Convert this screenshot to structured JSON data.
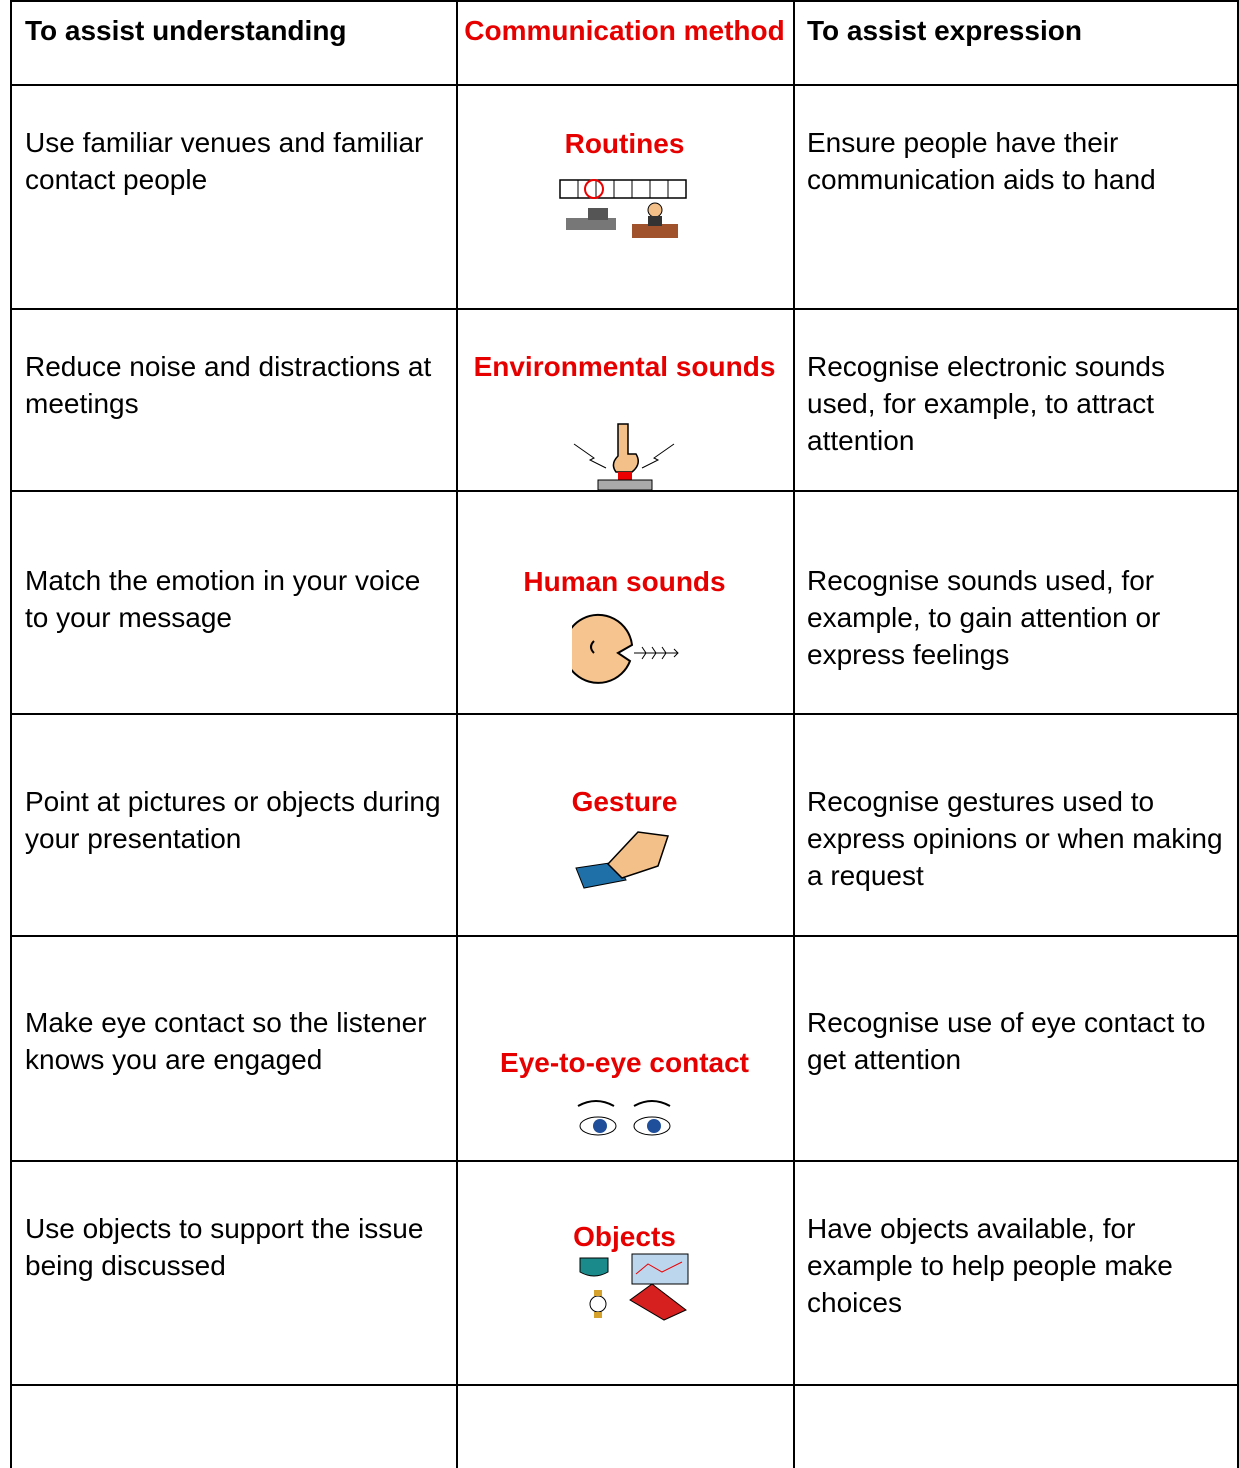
{
  "table": {
    "header": [
      "To assist understanding",
      "Communication method",
      "To assist expression"
    ],
    "rows": [
      [
        "Use familiar venues and familiar contact people",
        "Routines",
        "Ensure people have their communication aids to hand"
      ],
      [
        "Reduce noise and distractions at meetings",
        "Environmental sounds",
        "Recognise electronic sounds used, for example, to attract attention"
      ],
      [
        "Match the emotion in your voice to your message",
        "Human sounds",
        "Recognise sounds used, for example, to gain attention or express feelings"
      ],
      [
        "Point at pictures or objects during your presentation",
        "Gesture",
        "Recognise gestures used to express opinions or when making a request"
      ],
      [
        "Make eye contact so the listener knows you are engaged",
        "Eye-to-eye contact",
        "Recognise use of eye contact to get attention"
      ],
      [
        "Use objects to support the issue being discussed",
        "Objects",
        "Have objects available, for example to help people make choices"
      ]
    ]
  }
}
